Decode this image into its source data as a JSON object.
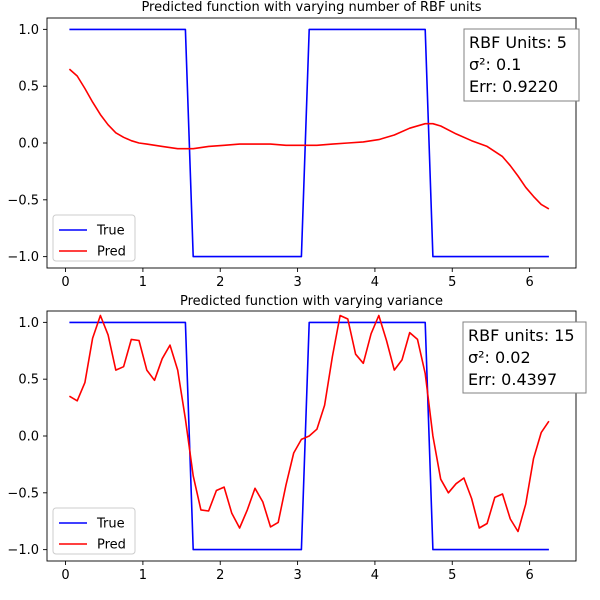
{
  "chart_data": [
    {
      "type": "line",
      "title": "Predicted function with varying number of RBF units",
      "xlim": [
        -0.24,
        6.6
      ],
      "ylim": [
        -1.1,
        1.1
      ],
      "xticks": [
        0,
        1,
        2,
        3,
        4,
        5,
        6
      ],
      "yticks": [
        -1.0,
        -0.5,
        0.0,
        0.5,
        1.0
      ],
      "xtick_labels": [
        "0",
        "1",
        "2",
        "3",
        "4",
        "5",
        "6"
      ],
      "ytick_labels": [
        "−1.0",
        "−0.5",
        "0.0",
        "0.5",
        "1.0"
      ],
      "legend": {
        "placement": "lower-left",
        "entries": [
          "True",
          "Pred"
        ]
      },
      "annotation": {
        "placement": "top-right",
        "lines": [
          "RBF Units: 5",
          "σ²: 0.1",
          "Err: 0.9220"
        ]
      },
      "series": [
        {
          "name": "True",
          "color": "#0000ff",
          "x": [
            0.05,
            1.55,
            1.65,
            3.05,
            3.15,
            4.65,
            4.75,
            6.25
          ],
          "y": [
            1,
            1,
            -1,
            -1,
            1,
            1,
            -1,
            -1
          ]
        },
        {
          "name": "Pred",
          "color": "#ff0000",
          "x": [
            0.05,
            0.15,
            0.25,
            0.35,
            0.45,
            0.55,
            0.65,
            0.75,
            0.85,
            0.95,
            1.05,
            1.25,
            1.45,
            1.65,
            1.85,
            2.05,
            2.25,
            2.45,
            2.65,
            2.85,
            3.05,
            3.25,
            3.45,
            3.65,
            3.85,
            4.05,
            4.25,
            4.45,
            4.65,
            4.75,
            4.85,
            5.05,
            5.25,
            5.45,
            5.65,
            5.75,
            5.85,
            5.95,
            6.05,
            6.15,
            6.25
          ],
          "y": [
            0.65,
            0.59,
            0.48,
            0.36,
            0.25,
            0.16,
            0.09,
            0.05,
            0.02,
            0.0,
            -0.01,
            -0.03,
            -0.05,
            -0.05,
            -0.03,
            -0.02,
            -0.01,
            -0.01,
            -0.01,
            -0.02,
            -0.02,
            -0.02,
            -0.01,
            0.0,
            0.01,
            0.03,
            0.07,
            0.13,
            0.17,
            0.17,
            0.15,
            0.08,
            0.02,
            -0.03,
            -0.12,
            -0.2,
            -0.29,
            -0.39,
            -0.47,
            -0.54,
            -0.58
          ]
        }
      ]
    },
    {
      "type": "line",
      "title": "Predicted function with varying variance",
      "xlim": [
        -0.24,
        6.6
      ],
      "ylim": [
        -1.1,
        1.1
      ],
      "xticks": [
        0,
        1,
        2,
        3,
        4,
        5,
        6
      ],
      "yticks": [
        -1.0,
        -0.5,
        0.0,
        0.5,
        1.0
      ],
      "xtick_labels": [
        "0",
        "1",
        "2",
        "3",
        "4",
        "5",
        "6"
      ],
      "ytick_labels": [
        "−1.0",
        "−0.5",
        "0.0",
        "0.5",
        "1.0"
      ],
      "legend": {
        "placement": "lower-left",
        "entries": [
          "True",
          "Pred"
        ]
      },
      "annotation": {
        "placement": "top-right",
        "lines": [
          "RBF units: 15",
          "σ²: 0.02",
          "Err: 0.4397"
        ]
      },
      "series": [
        {
          "name": "True",
          "color": "#0000ff",
          "x": [
            0.05,
            1.55,
            1.65,
            3.05,
            3.15,
            4.65,
            4.75,
            6.25
          ],
          "y": [
            1,
            1,
            -1,
            -1,
            1,
            1,
            -1,
            -1
          ]
        },
        {
          "name": "Pred",
          "color": "#ff0000",
          "x": [
            0.05,
            0.15,
            0.25,
            0.35,
            0.45,
            0.55,
            0.65,
            0.75,
            0.85,
            0.95,
            1.05,
            1.15,
            1.25,
            1.35,
            1.45,
            1.55,
            1.65,
            1.75,
            1.85,
            1.95,
            2.05,
            2.15,
            2.25,
            2.35,
            2.45,
            2.55,
            2.65,
            2.75,
            2.85,
            2.95,
            3.05,
            3.15,
            3.25,
            3.35,
            3.45,
            3.55,
            3.65,
            3.75,
            3.85,
            3.95,
            4.05,
            4.15,
            4.25,
            4.35,
            4.45,
            4.55,
            4.65,
            4.75,
            4.85,
            4.95,
            5.05,
            5.15,
            5.25,
            5.35,
            5.45,
            5.55,
            5.65,
            5.75,
            5.85,
            5.95,
            6.05,
            6.15,
            6.25
          ],
          "y": [
            0.35,
            0.31,
            0.47,
            0.86,
            1.06,
            0.89,
            0.58,
            0.61,
            0.85,
            0.84,
            0.58,
            0.49,
            0.68,
            0.8,
            0.58,
            0.15,
            -0.35,
            -0.65,
            -0.66,
            -0.48,
            -0.45,
            -0.68,
            -0.81,
            -0.65,
            -0.46,
            -0.58,
            -0.8,
            -0.76,
            -0.43,
            -0.15,
            -0.03,
            0.0,
            0.06,
            0.27,
            0.7,
            1.06,
            1.03,
            0.72,
            0.64,
            0.9,
            1.06,
            0.84,
            0.58,
            0.67,
            0.91,
            0.85,
            0.55,
            0.0,
            -0.38,
            -0.5,
            -0.42,
            -0.37,
            -0.55,
            -0.81,
            -0.77,
            -0.54,
            -0.51,
            -0.73,
            -0.84,
            -0.6,
            -0.2,
            0.03,
            0.13
          ]
        }
      ]
    }
  ]
}
